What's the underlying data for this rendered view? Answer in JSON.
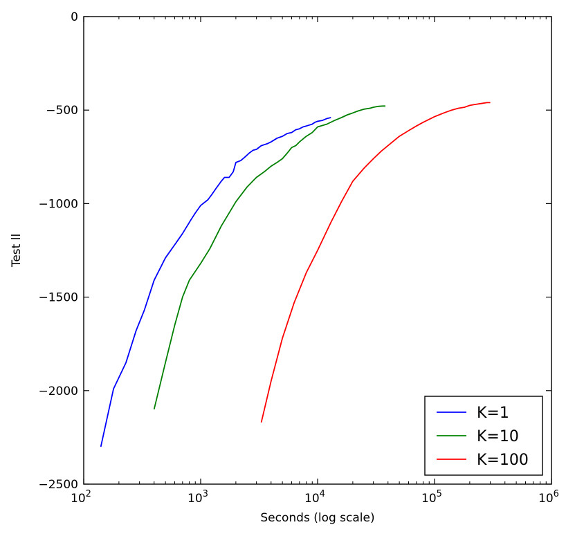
{
  "chart_data": {
    "type": "line",
    "title": "",
    "xlabel": "Seconds (log scale)",
    "ylabel": "Test ll",
    "xscale": "log",
    "xlim": [
      100,
      1000000
    ],
    "ylim": [
      -2500,
      0
    ],
    "yticks": [
      0,
      -500,
      -1000,
      -1500,
      -2000,
      -2500
    ],
    "ytick_labels": [
      "0",
      "−500",
      "−1000",
      "−1500",
      "−2000",
      "−2500"
    ],
    "xticks": [
      100,
      1000,
      10000,
      100000,
      1000000
    ],
    "xtick_bases": [
      "10",
      "10",
      "10",
      "10",
      "10"
    ],
    "xtick_exps": [
      "2",
      "3",
      "4",
      "5",
      "6"
    ],
    "grid": false,
    "legend_position": "lower-right",
    "series": [
      {
        "name": "K=1",
        "color": "#0000ff",
        "x": [
          140,
          180,
          230,
          280,
          330,
          400,
          500,
          600,
          700,
          820,
          900,
          1000,
          1150,
          1250,
          1350,
          1500,
          1600,
          1750,
          1900,
          2000,
          2200,
          2400,
          2600,
          2800,
          3000,
          3300,
          3500,
          3700,
          4000,
          4500,
          5000,
          5500,
          6000,
          6500,
          7000,
          7500,
          8000,
          8500,
          9000,
          9500,
          10000,
          11000,
          12000,
          13000
        ],
        "y": [
          -2300,
          -1990,
          -1850,
          -1680,
          -1570,
          -1410,
          -1290,
          -1220,
          -1160,
          -1090,
          -1050,
          -1010,
          -980,
          -950,
          -920,
          -880,
          -860,
          -860,
          -830,
          -780,
          -770,
          -750,
          -730,
          -715,
          -710,
          -690,
          -685,
          -680,
          -670,
          -650,
          -640,
          -625,
          -620,
          -605,
          -600,
          -590,
          -585,
          -580,
          -575,
          -565,
          -560,
          -555,
          -545,
          -540
        ]
      },
      {
        "name": "K=10",
        "color": "#008000",
        "x": [
          400,
          500,
          600,
          700,
          800,
          1000,
          1200,
          1500,
          2000,
          2500,
          3000,
          3500,
          4000,
          4500,
          5000,
          5500,
          6000,
          6500,
          7000,
          8000,
          9000,
          10000,
          12000,
          14000,
          16000,
          18000,
          20000,
          22000,
          25000,
          28000,
          30000,
          33000,
          36000,
          38000
        ],
        "y": [
          -2100,
          -1850,
          -1650,
          -1500,
          -1410,
          -1320,
          -1240,
          -1120,
          -990,
          -910,
          -860,
          -830,
          -800,
          -780,
          -760,
          -730,
          -700,
          -690,
          -670,
          -640,
          -620,
          -590,
          -575,
          -555,
          -540,
          -525,
          -515,
          -505,
          -495,
          -490,
          -485,
          -480,
          -478,
          -478
        ]
      },
      {
        "name": "K=100",
        "color": "#ff0000",
        "x": [
          3300,
          4000,
          5000,
          6300,
          8000,
          10000,
          13000,
          16000,
          20000,
          25000,
          30000,
          35000,
          40000,
          50000,
          60000,
          70000,
          80000,
          100000,
          120000,
          140000,
          160000,
          180000,
          200000,
          220000,
          250000,
          280000,
          300000
        ],
        "y": [
          -2170,
          -1950,
          -1720,
          -1530,
          -1370,
          -1250,
          -1100,
          -990,
          -880,
          -810,
          -760,
          -720,
          -690,
          -640,
          -610,
          -585,
          -565,
          -535,
          -515,
          -500,
          -490,
          -485,
          -475,
          -470,
          -465,
          -460,
          -460
        ]
      }
    ]
  }
}
